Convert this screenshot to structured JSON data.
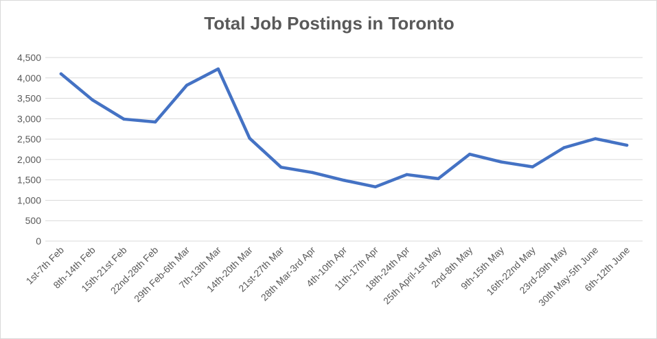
{
  "chart_data": {
    "type": "line",
    "title": "Total Job Postings in Toronto",
    "xlabel": "",
    "ylabel": "",
    "ylim": [
      0,
      4500
    ],
    "yticks": [
      "0",
      "500",
      "1,000",
      "1,500",
      "2,000",
      "2,500",
      "3,000",
      "3,500",
      "4,000",
      "4,500"
    ],
    "ytick_values": [
      0,
      500,
      1000,
      1500,
      2000,
      2500,
      3000,
      3500,
      4000,
      4500
    ],
    "grid": true,
    "legend": "none",
    "categories": [
      "1st-7th Feb",
      "8th-14th Feb",
      "15th-21st Feb",
      "22nd-28th Feb",
      "29th Feb-6th Mar",
      "7th-13th Mar",
      "14th-20th Mar",
      "21st-27th Mar",
      "28th Mar-3rd Apr",
      "4th-10th Apr",
      "11th-17th Apr",
      "18th-24th Apr",
      "25th April-1st May",
      "2nd-8th May",
      "9th-15th May",
      "16th-22nd May",
      "23rd-29th May",
      "30th May-5th June",
      "6th-12th June"
    ],
    "series": [
      {
        "values": [
          4100,
          3460,
          2990,
          2920,
          3820,
          4220,
          2520,
          1810,
          1680,
          1490,
          1330,
          1630,
          1530,
          2130,
          1940,
          1820,
          2290,
          2510,
          2350
        ],
        "color": "#4472c4"
      }
    ]
  }
}
